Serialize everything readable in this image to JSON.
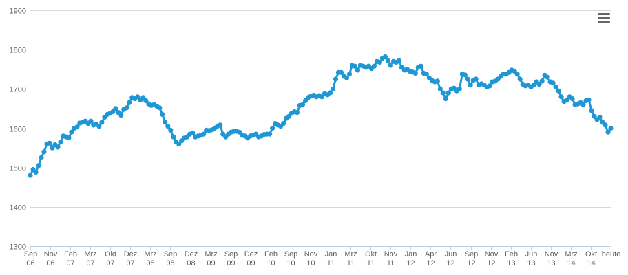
{
  "menu": {
    "icon": "hamburger-icon"
  },
  "colors": {
    "line": "#1f97d4",
    "grid": "#d8d8d8",
    "axis": "#c0d0e0",
    "text": "#606060"
  },
  "chart_data": {
    "type": "line",
    "title": "",
    "xlabel": "",
    "ylabel": "",
    "ylim": [
      1300,
      1900
    ],
    "yticks": [
      1300,
      1400,
      1500,
      1600,
      1700,
      1800,
      1900
    ],
    "grid": true,
    "legend": "none",
    "xticks": [
      {
        "line1": "Sep",
        "line2": "06"
      },
      {
        "line1": "Nov",
        "line2": "06"
      },
      {
        "line1": "Feb",
        "line2": "07"
      },
      {
        "line1": "Mrz",
        "line2": "07"
      },
      {
        "line1": "Okt",
        "line2": "07"
      },
      {
        "line1": "Dez",
        "line2": "07"
      },
      {
        "line1": "Mrz",
        "line2": "08"
      },
      {
        "line1": "Sep",
        "line2": "08"
      },
      {
        "line1": "Dez",
        "line2": "08"
      },
      {
        "line1": "Mrz",
        "line2": "09"
      },
      {
        "line1": "Sep",
        "line2": "09"
      },
      {
        "line1": "Dez",
        "line2": "09"
      },
      {
        "line1": "Feb",
        "line2": "10"
      },
      {
        "line1": "Sep",
        "line2": "10"
      },
      {
        "line1": "Nov",
        "line2": "10"
      },
      {
        "line1": "Jan",
        "line2": "11"
      },
      {
        "line1": "Mrz",
        "line2": "11"
      },
      {
        "line1": "Okt",
        "line2": "11"
      },
      {
        "line1": "Nov",
        "line2": "11"
      },
      {
        "line1": "Jan",
        "line2": "12"
      },
      {
        "line1": "Apr",
        "line2": "12"
      },
      {
        "line1": "Jun",
        "line2": "12"
      },
      {
        "line1": "Sep",
        "line2": "12"
      },
      {
        "line1": "Nov",
        "line2": "12"
      },
      {
        "line1": "Feb",
        "line2": "13"
      },
      {
        "line1": "Jun",
        "line2": "13"
      },
      {
        "line1": "Nov",
        "line2": "13"
      },
      {
        "line1": "Mrz",
        "line2": "14"
      },
      {
        "line1": "Okt",
        "line2": "14"
      },
      {
        "line1": "heute",
        "line2": ""
      }
    ],
    "series": [
      {
        "values": [
          1480,
          1495,
          1488,
          1505,
          1525,
          1540,
          1560,
          1562,
          1550,
          1558,
          1552,
          1565,
          1580,
          1578,
          1576,
          1590,
          1600,
          1603,
          1613,
          1615,
          1618,
          1612,
          1618,
          1608,
          1610,
          1605,
          1615,
          1628,
          1635,
          1638,
          1642,
          1650,
          1640,
          1633,
          1648,
          1652,
          1665,
          1678,
          1675,
          1680,
          1672,
          1678,
          1670,
          1662,
          1658,
          1660,
          1656,
          1652,
          1635,
          1615,
          1605,
          1595,
          1578,
          1565,
          1560,
          1568,
          1575,
          1578,
          1585,
          1588,
          1578,
          1580,
          1582,
          1585,
          1595,
          1594,
          1596,
          1600,
          1605,
          1608,
          1585,
          1578,
          1585,
          1590,
          1592,
          1592,
          1590,
          1582,
          1580,
          1575,
          1580,
          1582,
          1585,
          1578,
          1580,
          1584,
          1585,
          1585,
          1600,
          1612,
          1608,
          1605,
          1612,
          1625,
          1630,
          1638,
          1642,
          1640,
          1658,
          1660,
          1670,
          1678,
          1682,
          1684,
          1680,
          1683,
          1680,
          1688,
          1685,
          1690,
          1700,
          1725,
          1742,
          1742,
          1732,
          1728,
          1738,
          1760,
          1758,
          1748,
          1760,
          1758,
          1755,
          1758,
          1752,
          1758,
          1770,
          1768,
          1778,
          1782,
          1772,
          1760,
          1770,
          1768,
          1772,
          1755,
          1748,
          1750,
          1745,
          1743,
          1740,
          1755,
          1758,
          1740,
          1738,
          1728,
          1722,
          1718,
          1720,
          1700,
          1690,
          1675,
          1690,
          1700,
          1702,
          1695,
          1700,
          1738,
          1736,
          1725,
          1710,
          1722,
          1725,
          1710,
          1713,
          1710,
          1705,
          1708,
          1718,
          1720,
          1725,
          1732,
          1738,
          1738,
          1742,
          1748,
          1745,
          1738,
          1725,
          1712,
          1708,
          1710,
          1705,
          1710,
          1718,
          1712,
          1720,
          1735,
          1730,
          1718,
          1715,
          1705,
          1695,
          1680,
          1668,
          1672,
          1680,
          1675,
          1660,
          1662,
          1665,
          1660,
          1670,
          1672,
          1645,
          1630,
          1622,
          1628,
          1615,
          1608,
          1590,
          1600
        ]
      }
    ]
  }
}
